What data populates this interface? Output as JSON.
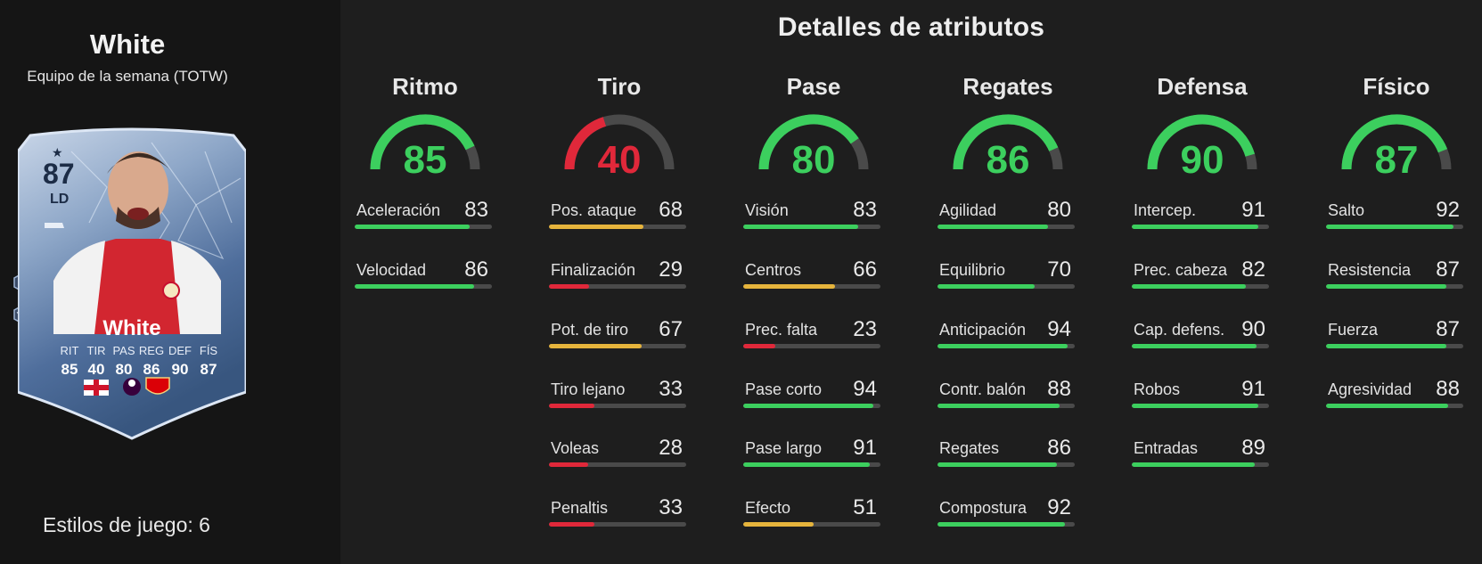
{
  "player": {
    "name": "White",
    "subtitle": "Equipo de la semana (TOTW)",
    "playstyles_label": "Estilos de juego: 6"
  },
  "card": {
    "rating": "87",
    "position": "LD",
    "name": "White",
    "stat_labels": [
      "RIT",
      "TIR",
      "PAS",
      "REG",
      "DEF",
      "FÍS"
    ],
    "stat_values": [
      "85",
      "40",
      "80",
      "86",
      "90",
      "87"
    ]
  },
  "main": {
    "title": "Detalles de atributos"
  },
  "colors": {
    "green": "#3ccf5e",
    "yellow": "#e6b43c",
    "red": "#e0283a",
    "track": "#4a4a4a"
  },
  "categories": [
    {
      "name": "Ritmo",
      "value": 85,
      "value_label": "85",
      "stats": [
        {
          "label": "Aceleración",
          "value": 83,
          "value_label": "83"
        },
        {
          "label": "Velocidad",
          "value": 86,
          "value_label": "86"
        }
      ]
    },
    {
      "name": "Tiro",
      "value": 40,
      "value_label": "40",
      "stats": [
        {
          "label": "Pos. ataque",
          "value": 68,
          "value_label": "68"
        },
        {
          "label": "Finalización",
          "value": 29,
          "value_label": "29"
        },
        {
          "label": "Pot. de tiro",
          "value": 67,
          "value_label": "67"
        },
        {
          "label": "Tiro lejano",
          "value": 33,
          "value_label": "33"
        },
        {
          "label": "Voleas",
          "value": 28,
          "value_label": "28"
        },
        {
          "label": "Penaltis",
          "value": 33,
          "value_label": "33"
        }
      ]
    },
    {
      "name": "Pase",
      "value": 80,
      "value_label": "80",
      "stats": [
        {
          "label": "Visión",
          "value": 83,
          "value_label": "83"
        },
        {
          "label": "Centros",
          "value": 66,
          "value_label": "66"
        },
        {
          "label": "Prec. falta",
          "value": 23,
          "value_label": "23"
        },
        {
          "label": "Pase corto",
          "value": 94,
          "value_label": "94"
        },
        {
          "label": "Pase largo",
          "value": 91,
          "value_label": "91"
        },
        {
          "label": "Efecto",
          "value": 51,
          "value_label": "51"
        }
      ]
    },
    {
      "name": "Regates",
      "value": 86,
      "value_label": "86",
      "stats": [
        {
          "label": "Agilidad",
          "value": 80,
          "value_label": "80"
        },
        {
          "label": "Equilibrio",
          "value": 70,
          "value_label": "70"
        },
        {
          "label": "Anticipación",
          "value": 94,
          "value_label": "94"
        },
        {
          "label": "Contr. balón",
          "value": 88,
          "value_label": "88"
        },
        {
          "label": "Regates",
          "value": 86,
          "value_label": "86"
        },
        {
          "label": "Compostura",
          "value": 92,
          "value_label": "92"
        }
      ]
    },
    {
      "name": "Defensa",
      "value": 90,
      "value_label": "90",
      "stats": [
        {
          "label": "Intercep.",
          "value": 91,
          "value_label": "91"
        },
        {
          "label": "Prec. cabeza",
          "value": 82,
          "value_label": "82"
        },
        {
          "label": "Cap. defens.",
          "value": 90,
          "value_label": "90"
        },
        {
          "label": "Robos",
          "value": 91,
          "value_label": "91"
        },
        {
          "label": "Entradas",
          "value": 89,
          "value_label": "89"
        }
      ]
    },
    {
      "name": "Físico",
      "value": 87,
      "value_label": "87",
      "stats": [
        {
          "label": "Salto",
          "value": 92,
          "value_label": "92"
        },
        {
          "label": "Resistencia",
          "value": 87,
          "value_label": "87"
        },
        {
          "label": "Fuerza",
          "value": 87,
          "value_label": "87"
        },
        {
          "label": "Agresividad",
          "value": 88,
          "value_label": "88"
        }
      ]
    }
  ]
}
